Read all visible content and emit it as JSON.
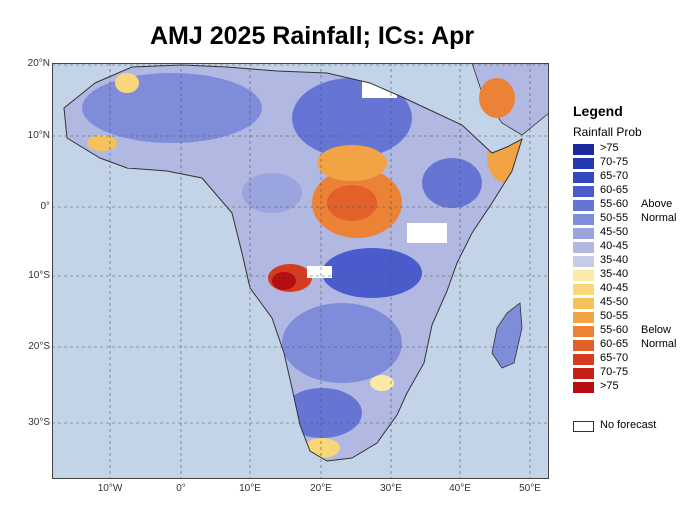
{
  "title": "AMJ 2025 Rainfall; ICs: Apr",
  "map": {
    "lat_labels": [
      "20°N",
      "10°N",
      "0°",
      "10°S",
      "20°S",
      "30°S"
    ],
    "lon_labels": [
      "10°W",
      "0°",
      "10°E",
      "20°E",
      "30°E",
      "40°E",
      "50°E"
    ]
  },
  "legend": {
    "title": "Legend",
    "subtitle": "Rainfall Prob",
    "above_label_1": "Above",
    "above_label_2": "Normal",
    "below_label_1": "Below",
    "below_label_2": "Normal",
    "above": [
      {
        "label": ">75",
        "color": "#1a2a9c"
      },
      {
        "label": "70-75",
        "color": "#2438b0"
      },
      {
        "label": "65-70",
        "color": "#3347bf"
      },
      {
        "label": "60-65",
        "color": "#4a5ccc"
      },
      {
        "label": "55-60",
        "color": "#6675d4"
      },
      {
        "label": "50-55",
        "color": "#7f8cda"
      },
      {
        "label": "45-50",
        "color": "#9aa4df"
      },
      {
        "label": "40-45",
        "color": "#b1b8e2"
      },
      {
        "label": "35-40",
        "color": "#c8cce6"
      }
    ],
    "below": [
      {
        "label": "35-40",
        "color": "#fbe9a6"
      },
      {
        "label": "40-45",
        "color": "#f8d77a"
      },
      {
        "label": "45-50",
        "color": "#f5c15a"
      },
      {
        "label": "50-55",
        "color": "#f2a444"
      },
      {
        "label": "55-60",
        "color": "#ec8235"
      },
      {
        "label": "60-65",
        "color": "#e2602a"
      },
      {
        "label": "65-70",
        "color": "#d53c1f"
      },
      {
        "label": "70-75",
        "color": "#c72117"
      },
      {
        "label": ">75",
        "color": "#b50d12"
      }
    ],
    "no_forecast": "No forecast"
  }
}
